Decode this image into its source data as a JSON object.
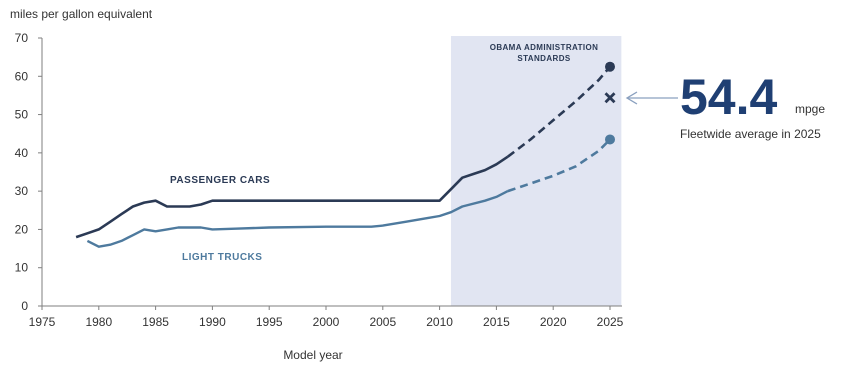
{
  "chart_data": {
    "type": "line",
    "ylabel": "miles per gallon equivalent",
    "xlabel": "Model year",
    "xlim": [
      1975,
      2025
    ],
    "ylim": [
      0,
      70
    ],
    "x_ticks": [
      1975,
      1980,
      1985,
      1990,
      1995,
      2000,
      2005,
      2010,
      2015,
      2020,
      2025
    ],
    "y_ticks": [
      0,
      10,
      20,
      30,
      40,
      50,
      60,
      70
    ],
    "grid": false,
    "highlight_band": {
      "x_from": 2011,
      "x_to": 2026,
      "label_lines": [
        "OBAMA ADMINISTRATION",
        "STANDARDS"
      ],
      "color": "#e1e5f2"
    },
    "series": [
      {
        "name": "PASSENGER CARS",
        "color": "#2b3a55",
        "x": [
          1978,
          1979,
          1980,
          1981,
          1982,
          1983,
          1984,
          1985,
          1986,
          1987,
          1988,
          1989,
          1990,
          1995,
          2000,
          2005,
          2010,
          2011,
          2012,
          2013,
          2014,
          2015,
          2016
        ],
        "y": [
          18,
          19,
          20,
          22,
          24,
          26,
          27,
          27.5,
          26,
          26,
          26,
          26.5,
          27.5,
          27.5,
          27.5,
          27.5,
          27.5,
          30.5,
          33.5,
          34.5,
          35.5,
          37,
          39
        ],
        "projection": {
          "x": [
            2016,
            2018,
            2020,
            2022,
            2024,
            2025
          ],
          "y": [
            39,
            43.5,
            48.5,
            53.5,
            59,
            62.5
          ]
        },
        "end_marker": [
          2025,
          62.5
        ]
      },
      {
        "name": "LIGHT TRUCKS",
        "color": "#4e7a9e",
        "x": [
          1979,
          1980,
          1981,
          1982,
          1983,
          1984,
          1985,
          1986,
          1987,
          1988,
          1989,
          1990,
          1992,
          1995,
          2000,
          2004,
          2005,
          2007,
          2009,
          2010,
          2011,
          2012,
          2014,
          2015,
          2016
        ],
        "y": [
          17,
          15.5,
          16,
          17,
          18.5,
          20,
          19.5,
          20,
          20.5,
          20.5,
          20.5,
          20,
          20.2,
          20.5,
          20.7,
          20.7,
          21,
          22,
          23,
          23.5,
          24.5,
          26,
          27.5,
          28.5,
          30
        ],
        "projection": {
          "x": [
            2016,
            2018,
            2020,
            2022,
            2024,
            2025
          ],
          "y": [
            30,
            32,
            34,
            36.5,
            40.5,
            43.5
          ]
        },
        "end_marker": [
          2025,
          43.5
        ]
      }
    ],
    "target_marker": {
      "x": 2025,
      "y": 54.4,
      "symbol": "x"
    },
    "callout": {
      "value": "54.4",
      "unit": "mpge",
      "caption": "Fleetwide average in 2025"
    }
  }
}
